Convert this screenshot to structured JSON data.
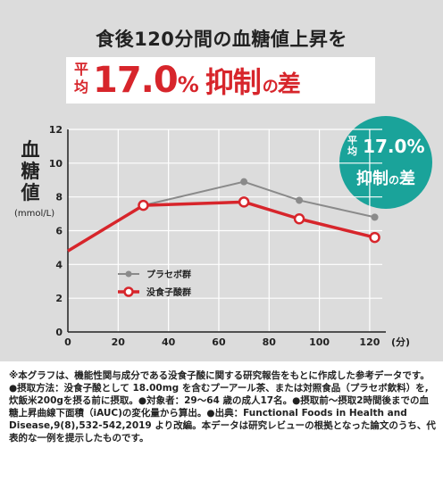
{
  "headline": "食後120分間の血糖値上昇を",
  "banner": {
    "small": "平均",
    "value": "17.0",
    "percent": "%",
    "word": "抑制",
    "no": "の",
    "diff": "差"
  },
  "badge": {
    "small": "平均",
    "value": "17.0%",
    "word": "抑制",
    "no": "の",
    "diff": "差"
  },
  "axis_label": {
    "ylabel": "血糖値",
    "yunit": "(mmol/L)"
  },
  "colors": {
    "placebo": "#8a8a8a",
    "treatment": "#d7252b",
    "badge": "#1aa39a",
    "hero_bg": "#dcdcdc"
  },
  "chart_data": {
    "type": "line",
    "xunit": "(分)",
    "xlim": [
      0,
      125
    ],
    "ylim": [
      0,
      12
    ],
    "xticks": [
      0,
      20,
      40,
      60,
      80,
      100,
      120
    ],
    "yticks": [
      0,
      2,
      4,
      6,
      8,
      10,
      12
    ],
    "grid": true,
    "legend_position": "lower-left",
    "series": [
      {
        "name": "プラセボ群",
        "marker": "filled-circle",
        "x": [
          0,
          30,
          70,
          92,
          122
        ],
        "values": [
          4.8,
          7.5,
          8.9,
          7.8,
          6.8
        ]
      },
      {
        "name": "没食子酸群",
        "marker": "open-circle",
        "x": [
          0,
          30,
          70,
          92,
          122
        ],
        "values": [
          4.8,
          7.5,
          7.7,
          6.7,
          5.6
        ]
      }
    ]
  },
  "footnote": "※本グラフは、機能性関与成分である没食子酸に関する研究報告をもとに作成した参考データです。●摂取方法：没食子酸として 18.00mg を含むプーアール茶、または対照食品（プラセボ飲料）を,炊飯米200gを摂る前に摂取。●対象者：29～64 歳の成人17名。●摂取前～摂取2時間後までの血糖上昇曲線下面積（iAUC)の変化量から算出。●出典：Functional Foods in Health and Disease,9(8),532-542,2019 より改編。本データは研究レビューの根拠となった論文のうち、代表的な一例を提示したものです。"
}
